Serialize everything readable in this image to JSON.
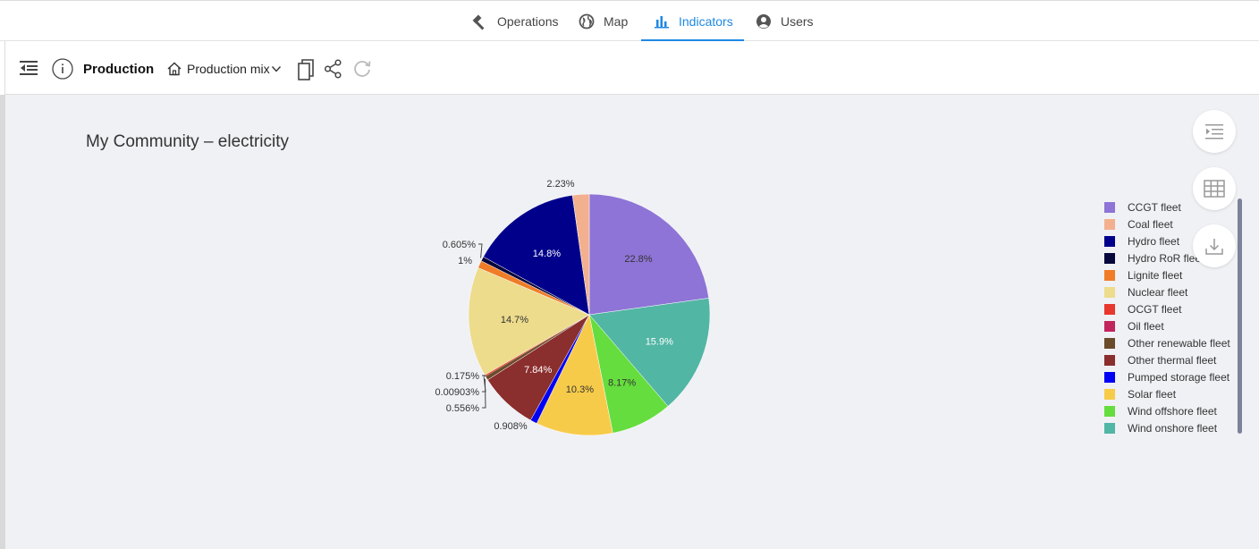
{
  "nav": {
    "items": [
      {
        "label": "Operations",
        "icon": "hammer-icon"
      },
      {
        "label": "Map",
        "icon": "globe-icon"
      },
      {
        "label": "Indicators",
        "icon": "bar-chart-icon",
        "active": true
      },
      {
        "label": "Users",
        "icon": "user-icon"
      }
    ]
  },
  "toolbar": {
    "title": "Production",
    "breadcrumb": "Production mix"
  },
  "chart_data": {
    "type": "pie",
    "title": "My Community – electricity",
    "legend_position": "right",
    "slices": [
      {
        "name": "CCGT fleet",
        "value": 22.8,
        "label": "22.8%",
        "color": "#8e74d6",
        "text_color": "#333333"
      },
      {
        "name": "Wind onshore fleet",
        "value": 15.9,
        "label": "15.9%",
        "color": "#52b6a4",
        "text_color": "#ffffff"
      },
      {
        "name": "Wind offshore fleet",
        "value": 8.17,
        "label": "8.17%",
        "color": "#65dd3e",
        "text_color": "#333333"
      },
      {
        "name": "Solar fleet",
        "value": 10.3,
        "label": "10.3%",
        "color": "#f7cb4a",
        "text_color": "#333333"
      },
      {
        "name": "Pumped storage fleet",
        "value": 0.908,
        "label": "0.908%",
        "color": "#0000f5",
        "text_color": "#333333"
      },
      {
        "name": "Other thermal fleet",
        "value": 7.84,
        "label": "7.84%",
        "color": "#8b2e2e",
        "text_color": "#ffffff"
      },
      {
        "name": "Other renewable fleet",
        "value": 0.556,
        "label": "0.556%",
        "color": "#6b4c2a",
        "text_color": "#333333"
      },
      {
        "name": "Oil fleet",
        "value": 0.00903,
        "label": "0.00903%",
        "color": "#c2255c",
        "text_color": "#333333"
      },
      {
        "name": "OCGT fleet",
        "value": 0.175,
        "label": "0.175%",
        "color": "#e8382d",
        "text_color": "#333333"
      },
      {
        "name": "Nuclear fleet",
        "value": 14.7,
        "label": "14.7%",
        "color": "#ecdc8c",
        "text_color": "#333333"
      },
      {
        "name": "Lignite fleet",
        "value": 1.0,
        "label": "1%",
        "color": "#f07c27",
        "text_color": "#333333"
      },
      {
        "name": "Hydro RoR fleet",
        "value": 0.605,
        "label": "0.605%",
        "color": "#07073d",
        "text_color": "#333333"
      },
      {
        "name": "Hydro fleet",
        "value": 14.8,
        "label": "14.8%",
        "color": "#00008b",
        "text_color": "#ffffff"
      },
      {
        "name": "Coal fleet",
        "value": 2.23,
        "label": "2.23%",
        "color": "#f3b08e",
        "text_color": "#333333"
      }
    ],
    "legend": [
      {
        "name": "CCGT fleet",
        "color": "#8e74d6"
      },
      {
        "name": "Coal fleet",
        "color": "#f3b08e"
      },
      {
        "name": "Hydro fleet",
        "color": "#00008b"
      },
      {
        "name": "Hydro RoR fleet",
        "color": "#07073d"
      },
      {
        "name": "Lignite fleet",
        "color": "#f07c27"
      },
      {
        "name": "Nuclear fleet",
        "color": "#ecdc8c"
      },
      {
        "name": "OCGT fleet",
        "color": "#e8382d"
      },
      {
        "name": "Oil fleet",
        "color": "#c2255c"
      },
      {
        "name": "Other renewable fleet",
        "color": "#6b4c2a"
      },
      {
        "name": "Other thermal fleet",
        "color": "#8b2e2e"
      },
      {
        "name": "Pumped storage fleet",
        "color": "#0000f5"
      },
      {
        "name": "Solar fleet",
        "color": "#f7cb4a"
      },
      {
        "name": "Wind offshore fleet",
        "color": "#65dd3e"
      },
      {
        "name": "Wind onshore fleet",
        "color": "#52b6a4"
      }
    ]
  }
}
